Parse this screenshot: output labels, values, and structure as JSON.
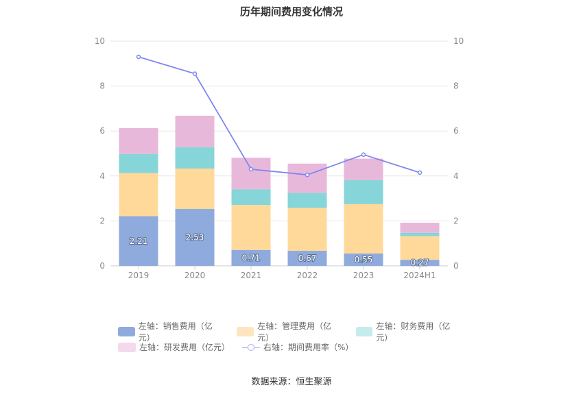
{
  "chart_data": {
    "type": "bar",
    "title": "历年期间费用变化情况",
    "categories": [
      "2019",
      "2020",
      "2021",
      "2022",
      "2023",
      "2024H1"
    ],
    "series": [
      {
        "name": "左轴：销售费用（亿元）",
        "axis": "left",
        "type": "bar",
        "color": "#8faadc",
        "values": [
          2.21,
          2.53,
          0.71,
          0.67,
          0.55,
          0.27
        ]
      },
      {
        "name": "左轴：管理费用（亿元）",
        "axis": "left",
        "type": "bar",
        "color": "#ffd999",
        "values": [
          1.92,
          1.8,
          2.0,
          1.91,
          2.2,
          1.05
        ]
      },
      {
        "name": "左轴：财务费用（亿元）",
        "axis": "left",
        "type": "bar",
        "color": "#86d5d8",
        "values": [
          0.85,
          0.95,
          0.7,
          0.67,
          1.07,
          0.15
        ]
      },
      {
        "name": "左轴：研发费用（亿元）",
        "axis": "left",
        "type": "bar",
        "color": "#e8b8da",
        "values": [
          1.15,
          1.4,
          1.4,
          1.3,
          0.95,
          0.45
        ]
      },
      {
        "name": "右轴：期间费用率（%）",
        "axis": "right",
        "type": "line",
        "color": "#7f86f0",
        "values": [
          9.3,
          8.55,
          4.3,
          4.05,
          4.95,
          4.15
        ]
      }
    ],
    "data_labels": [
      "2.21",
      "2.53",
      "0.71",
      "0.67",
      "0.55",
      "0.27"
    ],
    "y_left": {
      "ticks": [
        "0",
        "2",
        "4",
        "6",
        "8",
        "10"
      ],
      "range": [
        0,
        10
      ]
    },
    "y_right": {
      "ticks": [
        "0",
        "2",
        "4",
        "6",
        "8",
        "10"
      ],
      "range": [
        0,
        10
      ]
    },
    "legend_position": "bottom",
    "grid": true
  },
  "legend": {
    "sales": "左轴：销售费用（亿元）",
    "admin": "左轴：管理费用（亿元）",
    "finance": "左轴：财务费用（亿元）",
    "rd": "左轴：研发费用（亿元）",
    "rate": "右轴：期间费用率（%）",
    "colors": {
      "sales": "#8faadc",
      "admin": "#ffe5bf",
      "finance": "#c4ecec",
      "rd": "#f3d9ec",
      "rate": "#a7b1f6"
    }
  },
  "source": "数据来源：恒生聚源"
}
